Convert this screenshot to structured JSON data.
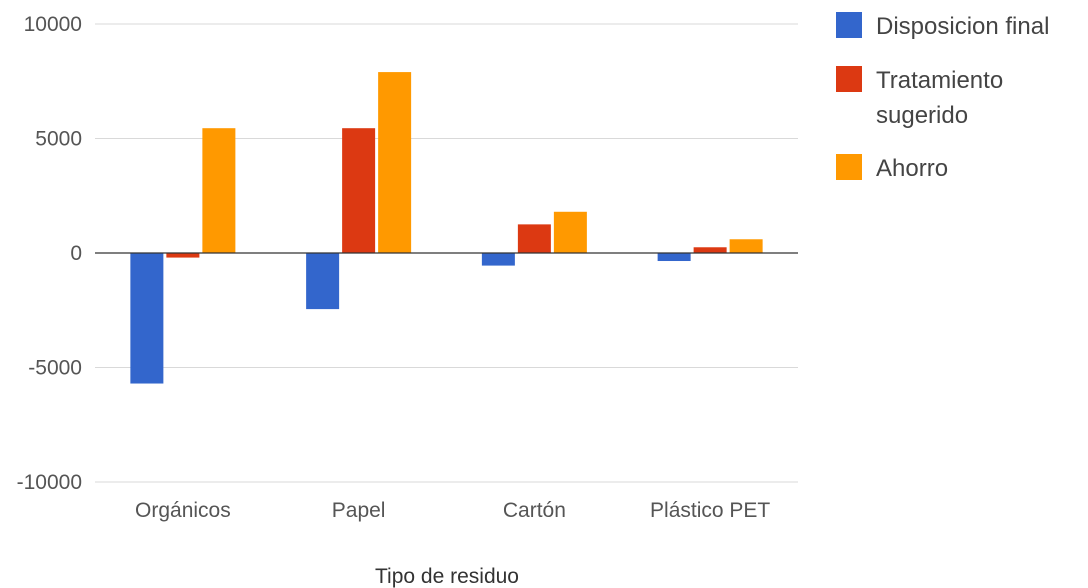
{
  "chart_data": {
    "type": "bar",
    "xlabel": "Tipo de residuo",
    "ylabel": "",
    "ylim": [
      -10000,
      10000
    ],
    "yticks": [
      10000,
      5000,
      0,
      -5000,
      -10000
    ],
    "grid": true,
    "legend_position": "right",
    "categories": [
      "Orgánicos",
      "Papel",
      "Cartón",
      "Plástico PET"
    ],
    "series": [
      {
        "name": "Disposicion final",
        "color": "#3366cc",
        "values": [
          -5700,
          -2450,
          -550,
          -350
        ]
      },
      {
        "name": "Tratamiento sugerido",
        "color": "#dc3912",
        "values": [
          -200,
          5450,
          1250,
          250
        ]
      },
      {
        "name": "Ahorro",
        "color": "#ff9900",
        "values": [
          5450,
          7900,
          1800,
          600
        ]
      }
    ],
    "legend_lines": [
      [
        "Disposicion final"
      ],
      [
        "Tratamiento",
        "sugerido"
      ],
      [
        "Ahorro"
      ]
    ]
  }
}
